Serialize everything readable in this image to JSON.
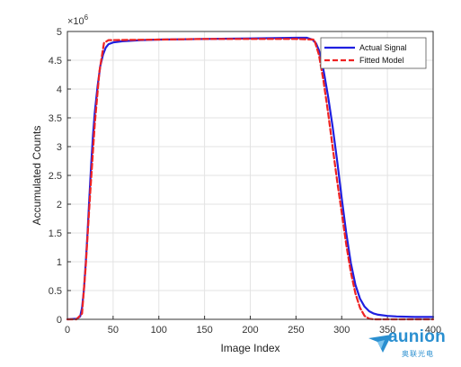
{
  "chart_data": {
    "type": "line",
    "title": "",
    "xlabel": "Image Index",
    "ylabel": "Accumulated Counts",
    "xlim": [
      0,
      400
    ],
    "ylim": [
      0,
      5
    ],
    "y_exponent_label": "×10",
    "y_exponent_power": "6",
    "xticks": [
      0,
      50,
      100,
      150,
      200,
      250,
      300,
      350,
      400
    ],
    "yticks": [
      0,
      0.5,
      1,
      1.5,
      2,
      2.5,
      3,
      3.5,
      4,
      4.5,
      5
    ],
    "grid": true,
    "legend_position": "top-right",
    "series": [
      {
        "name": "Actual Signal",
        "color": "#1f1fe0",
        "style": "solid",
        "x": [
          0,
          10,
          14,
          16,
          18,
          20,
          22,
          24,
          26,
          28,
          30,
          33,
          36,
          39,
          42,
          45,
          50,
          60,
          80,
          100,
          150,
          200,
          250,
          262,
          268,
          272,
          275,
          278,
          281,
          285,
          290,
          295,
          300,
          305,
          310,
          315,
          320,
          325,
          330,
          335,
          340,
          350,
          360,
          380,
          400
        ],
        "y": [
          0,
          0.01,
          0.05,
          0.2,
          0.5,
          0.95,
          1.5,
          2.1,
          2.7,
          3.2,
          3.6,
          4.05,
          4.4,
          4.6,
          4.72,
          4.78,
          4.81,
          4.83,
          4.85,
          4.86,
          4.87,
          4.88,
          4.89,
          4.89,
          4.86,
          4.79,
          4.68,
          4.5,
          4.25,
          3.88,
          3.35,
          2.75,
          2.1,
          1.5,
          0.98,
          0.6,
          0.36,
          0.22,
          0.14,
          0.1,
          0.08,
          0.06,
          0.05,
          0.04,
          0.04
        ]
      },
      {
        "name": "Fitted Model",
        "color": "#ee2222",
        "style": "dashed",
        "x": [
          0,
          10,
          16,
          20,
          25,
          30,
          35,
          40,
          45,
          50,
          100,
          150,
          200,
          250,
          270,
          275,
          280,
          285,
          290,
          295,
          300,
          305,
          310,
          315,
          320,
          325,
          330,
          335,
          340,
          345,
          350,
          400
        ],
        "y": [
          0,
          0,
          0.1,
          0.9,
          2.2,
          3.4,
          4.3,
          4.8,
          4.85,
          4.85,
          4.86,
          4.87,
          4.87,
          4.87,
          4.86,
          4.6,
          4.15,
          3.6,
          3.0,
          2.4,
          1.85,
          1.3,
          0.82,
          0.45,
          0.2,
          0.06,
          0.01,
          0,
          0,
          0,
          0,
          0
        ]
      }
    ]
  },
  "watermark": {
    "brand": "aunion",
    "brand_mark": "T",
    "subtitle": "奥联光电",
    "color": "#2a8fd0"
  }
}
